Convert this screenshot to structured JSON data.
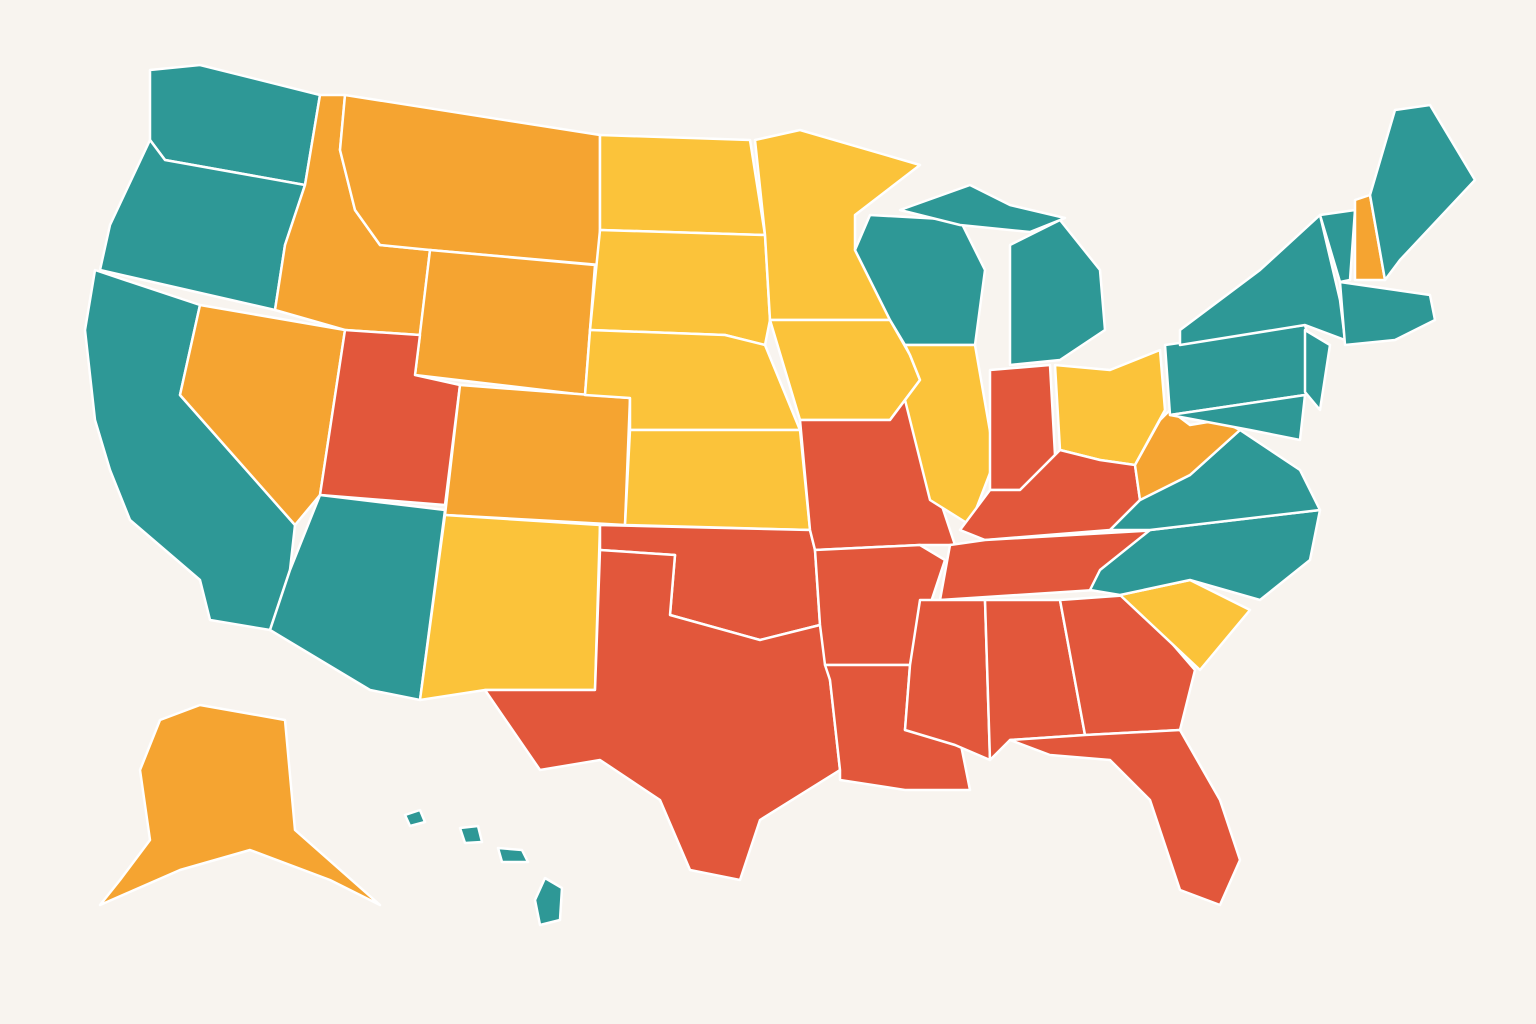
{
  "map": {
    "palette": [
      "#2e9896",
      "#f5a431",
      "#fbc33a",
      "#e2573b"
    ]
  }
}
